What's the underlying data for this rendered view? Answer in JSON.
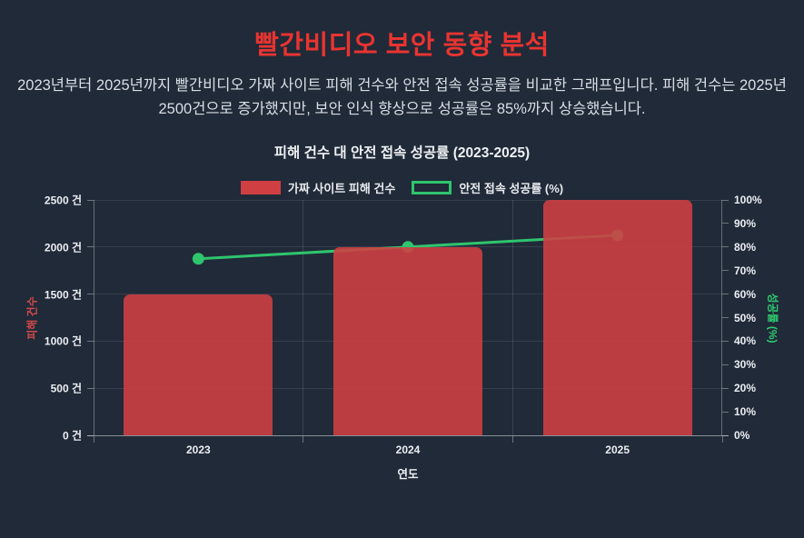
{
  "page": {
    "title": "빨간비디오 보안 동향 분석",
    "subtitle": "2023년부터 2025년까지 빨간비디오 가짜 사이트 피해 건수와 안전 접속 성공률을 비교한 그래프입니다. 피해 건수는 2025년 2500건으로 증가했지만, 보안 인식 향상으로 성공률은 85%까지 상승했습니다.",
    "colors": {
      "background": "#202a38",
      "title": "#e93431"
    }
  },
  "chart_data": {
    "type": "combo",
    "title": "피해 건수 대 안전 접속 성공률 (2023-2025)",
    "categories": [
      "2023",
      "2024",
      "2025"
    ],
    "series": [
      {
        "name": "가짜 사이트 피해 건수",
        "type": "bar",
        "values": [
          1500,
          2000,
          2500
        ],
        "color": "#d03f42",
        "axis": "left"
      },
      {
        "name": "안전 접속 성공률 (%)",
        "type": "line",
        "values": [
          75,
          80,
          85
        ],
        "color": "#2fc46e",
        "axis": "right"
      }
    ],
    "xlabel": "연도",
    "left_axis": {
      "label": "피해 건수",
      "color": "#d04a4a",
      "min": 0,
      "max": 2500,
      "step": 500,
      "tick_labels": [
        "2500 건",
        "2000 건",
        "1500 건",
        "1000 건",
        "500 건",
        "0 건"
      ]
    },
    "right_axis": {
      "label": "성공률 (%)",
      "color": "#2dcc70",
      "min": 0,
      "max": 100,
      "step": 10,
      "tick_labels": [
        "100%",
        "90%",
        "80%",
        "70%",
        "60%",
        "50%",
        "40%",
        "30%",
        "20%",
        "10%",
        "0%"
      ]
    },
    "grid": true,
    "legend_position": "top"
  }
}
